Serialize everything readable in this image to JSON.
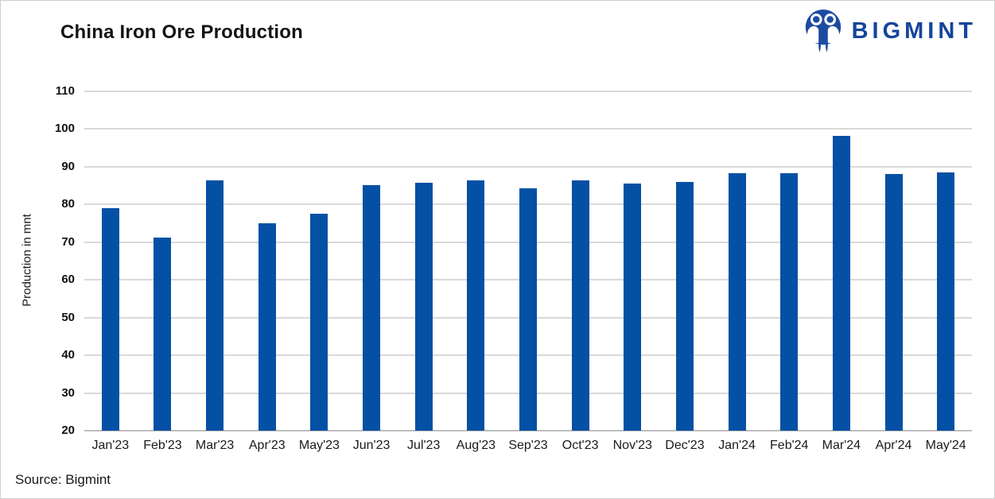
{
  "header": {
    "title": "China Iron Ore Production",
    "logo": {
      "brand": "BIGMINT",
      "icon": "bigmint-owl-people-mark",
      "color": "#16449b"
    }
  },
  "source_note": "Source: Bigmint",
  "chart_data": {
    "type": "bar",
    "title": "China Iron Ore Production",
    "xlabel": "",
    "ylabel": "Production in mnt",
    "categories": [
      "Jan'23",
      "Feb'23",
      "Mar'23",
      "Apr'23",
      "May'23",
      "Jun'23",
      "Jul'23",
      "Aug'23",
      "Sep'23",
      "Oct'23",
      "Nov'23",
      "Dec'23",
      "Jan'24",
      "Feb'24",
      "Mar'24",
      "Apr'24",
      "May'24"
    ],
    "values": [
      79.0,
      71.3,
      86.3,
      75.0,
      77.5,
      85.2,
      85.8,
      86.4,
      84.3,
      86.4,
      85.6,
      86.0,
      88.2,
      88.2,
      98.3,
      88.0,
      88.6
    ],
    "ylim": [
      20,
      110
    ],
    "ytick_step": 10,
    "grid": true,
    "legend": "none",
    "bar_color": "#0450a4",
    "gridline_color": "#d9d9d9",
    "baseline_color": "#bfbfbf"
  }
}
